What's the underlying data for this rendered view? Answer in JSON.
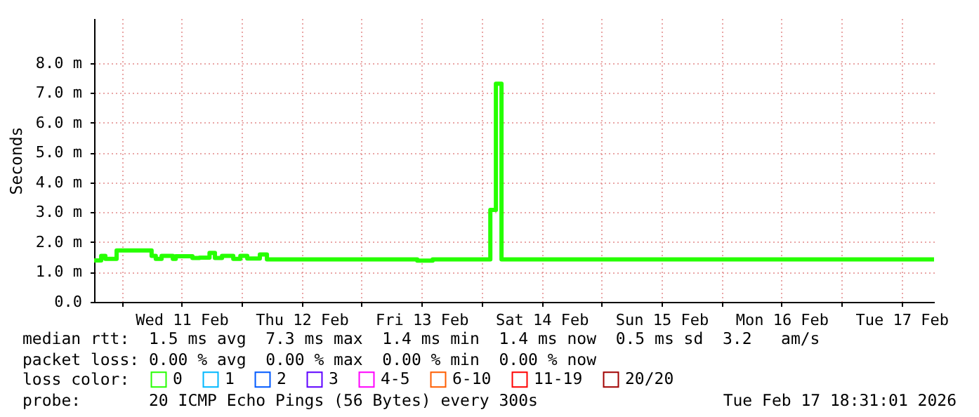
{
  "chart_data": {
    "type": "step",
    "ylabel": "Seconds",
    "legend_title": "loss color:",
    "legend": "bottom",
    "x": [
      "2026-02-10T18:30",
      "2026-02-10T19:55",
      "2026-02-10T20:45",
      "2026-02-10T23:00",
      "2026-02-11T06:00",
      "2026-02-11T06:50",
      "2026-02-11T08:00",
      "2026-02-11T10:15",
      "2026-02-11T10:50",
      "2026-02-11T14:10",
      "2026-02-11T15:35",
      "2026-02-11T17:35",
      "2026-02-11T18:40",
      "2026-02-11T20:05",
      "2026-02-11T22:20",
      "2026-02-11T23:45",
      "2026-02-12T01:08",
      "2026-02-12T03:39",
      "2026-02-12T05:04",
      "2026-02-13T11:08",
      "2026-02-13T14:13",
      "2026-02-14T01:45",
      "2026-02-14T02:52",
      "2026-02-14T03:59",
      "2026-02-17T18:30"
    ],
    "series": [
      {
        "name": "0",
        "color": "#26ff00",
        "values": [
          1.39,
          1.54,
          1.44,
          1.72,
          1.54,
          1.44,
          1.54,
          1.44,
          1.53,
          1.47,
          1.48,
          1.64,
          1.47,
          1.54,
          1.44,
          1.54,
          1.45,
          1.59,
          1.42,
          1.38,
          1.42,
          3.08,
          7.31,
          1.42,
          1.42
        ]
      },
      {
        "name": "1",
        "color": "#00b8ff",
        "values": [
          null,
          null,
          null,
          null,
          null,
          null,
          null,
          null,
          null,
          null,
          null,
          null,
          null,
          null,
          null,
          null,
          null,
          null,
          null,
          null,
          null,
          null,
          null,
          null,
          null
        ]
      },
      {
        "name": "2",
        "color": "#0059ff",
        "values": [
          null,
          null,
          null,
          null,
          null,
          null,
          null,
          null,
          null,
          null,
          null,
          null,
          null,
          null,
          null,
          null,
          null,
          null,
          null,
          null,
          null,
          null,
          null,
          null,
          null
        ]
      },
      {
        "name": "3",
        "color": "#5e00ff",
        "values": [
          null,
          null,
          null,
          null,
          null,
          null,
          null,
          null,
          null,
          null,
          null,
          null,
          null,
          null,
          null,
          null,
          null,
          null,
          null,
          null,
          null,
          null,
          null,
          null,
          null
        ]
      },
      {
        "name": "4-5",
        "color": "#ff00fe",
        "values": [
          null,
          null,
          null,
          null,
          null,
          null,
          null,
          null,
          null,
          null,
          null,
          null,
          null,
          null,
          null,
          null,
          null,
          null,
          null,
          null,
          null,
          null,
          null,
          null,
          null
        ]
      },
      {
        "name": "6-10",
        "color": "#ff5e00",
        "values": [
          null,
          null,
          null,
          null,
          null,
          null,
          null,
          null,
          null,
          null,
          null,
          null,
          null,
          null,
          null,
          null,
          null,
          null,
          null,
          null,
          null,
          null,
          null,
          null,
          null
        ]
      },
      {
        "name": "11-19",
        "color": "#ff0000",
        "values": [
          null,
          null,
          null,
          null,
          null,
          null,
          null,
          null,
          null,
          null,
          null,
          null,
          null,
          null,
          null,
          null,
          null,
          null,
          null,
          null,
          null,
          null,
          null,
          null,
          null
        ]
      },
      {
        "name": "20/20",
        "color": "#a10000",
        "values": [
          null,
          null,
          null,
          null,
          null,
          null,
          null,
          null,
          null,
          null,
          null,
          null,
          null,
          null,
          null,
          null,
          null,
          null,
          null,
          null,
          null,
          null,
          null,
          null,
          null
        ]
      }
    ],
    "xlim": [
      "2026-02-10T18:30",
      "2026-02-17T18:30"
    ],
    "xticks": [
      {
        "value": "2026-02-11T00:00",
        "label": null
      },
      {
        "value": "2026-02-11T12:00",
        "label": "Wed 11 Feb"
      },
      {
        "value": "2026-02-12T00:00",
        "label": null
      },
      {
        "value": "2026-02-12T12:00",
        "label": "Thu 12 Feb"
      },
      {
        "value": "2026-02-13T00:00",
        "label": null
      },
      {
        "value": "2026-02-13T12:00",
        "label": "Fri 13 Feb"
      },
      {
        "value": "2026-02-14T00:00",
        "label": null
      },
      {
        "value": "2026-02-14T12:00",
        "label": "Sat 14 Feb"
      },
      {
        "value": "2026-02-15T00:00",
        "label": null
      },
      {
        "value": "2026-02-15T12:00",
        "label": "Sun 15 Feb"
      },
      {
        "value": "2026-02-16T00:00",
        "label": null
      },
      {
        "value": "2026-02-16T12:00",
        "label": "Mon 16 Feb"
      },
      {
        "value": "2026-02-17T00:00",
        "label": null
      },
      {
        "value": "2026-02-17T12:00",
        "label": "Tue 17 Feb"
      }
    ],
    "ylim": [
      0,
      9.5
    ],
    "yticks": [
      {
        "value": 0,
        "label": "0.0"
      },
      {
        "value": 1,
        "label": "1.0 m"
      },
      {
        "value": 2,
        "label": "2.0 m"
      },
      {
        "value": 3,
        "label": "3.0 m"
      },
      {
        "value": 4,
        "label": "4.0 m"
      },
      {
        "value": 5,
        "label": "5.0 m"
      },
      {
        "value": 6,
        "label": "6.0 m"
      },
      {
        "value": 7,
        "label": "7.0 m"
      },
      {
        "value": 8,
        "label": "8.0 m"
      }
    ],
    "grid": true,
    "annotations": [
      "median rtt:  1.5 ms avg  7.3 ms max  1.4 ms min  1.4 ms now  0.5 ms sd  3.2   am/s",
      "packet loss: 0.00 % avg  0.00 % max  0.00 % min  0.00 % now",
      "probe:       20 ICMP Echo Pings (56 Bytes) every 300s",
      "Tue Feb 17 18:31:01 2026"
    ]
  }
}
